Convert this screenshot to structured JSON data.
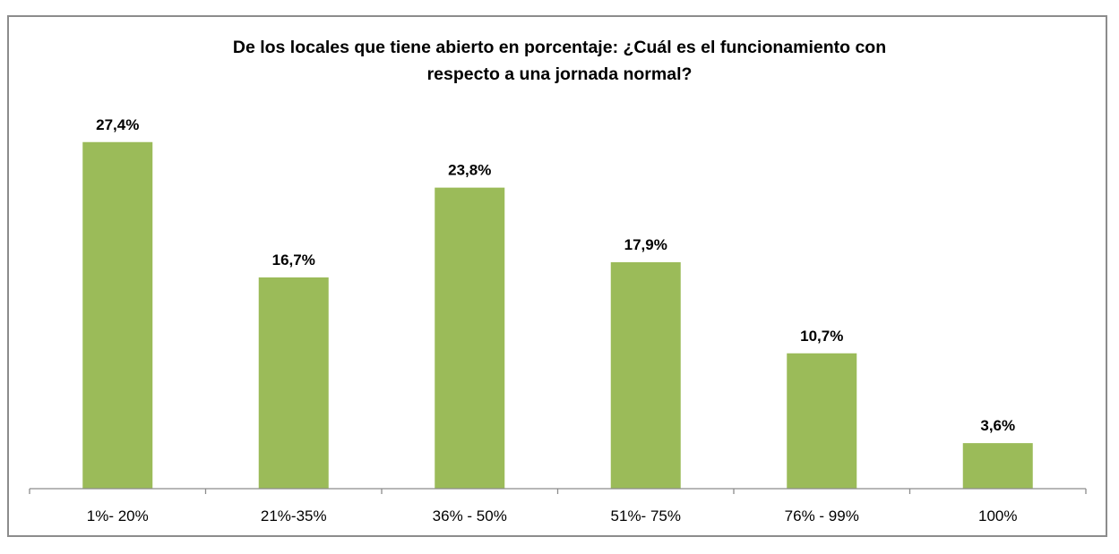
{
  "chart_data": {
    "type": "bar",
    "title_lines": [
      "De los locales que tiene abierto  en porcentaje: ¿Cuál es el funcionamiento con",
      "respecto a una jornada normal?"
    ],
    "categories": [
      "1%- 20%",
      "21%-35%",
      "36% - 50%",
      "51%- 75%",
      "76% - 99%",
      "100%"
    ],
    "values": [
      27.4,
      16.7,
      23.8,
      17.9,
      10.7,
      3.6
    ],
    "data_labels": [
      "27,4%",
      "16,7%",
      "23,8%",
      "17,9%",
      "10,7%",
      "3,6%"
    ],
    "ylim": [
      0,
      30
    ],
    "grid": false,
    "legend": "none",
    "bar_color": "#9bbb59",
    "axis_color": "#8c8c8c"
  }
}
